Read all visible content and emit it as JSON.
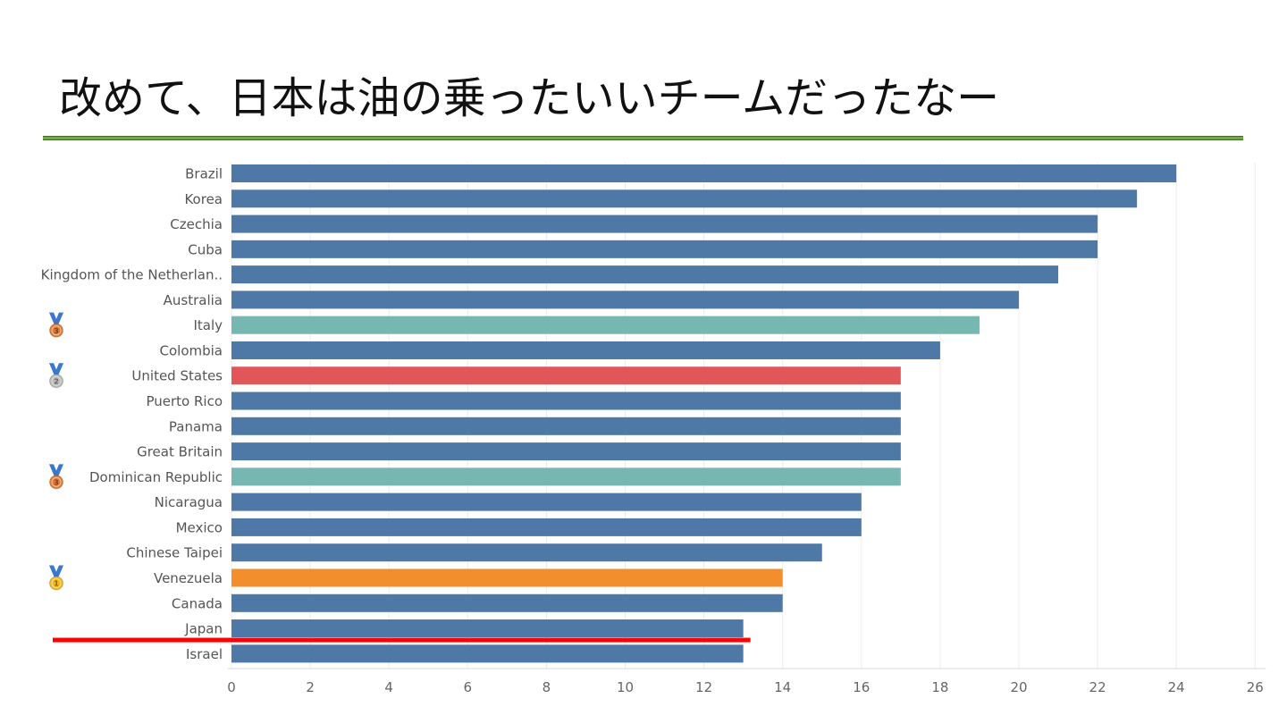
{
  "slide": {
    "title": "改めて、日本は油の乗ったいいチームだったなー"
  },
  "chart_data": {
    "type": "bar",
    "orientation": "horizontal",
    "title": "",
    "xlabel": "",
    "ylabel": "",
    "xlim": [
      0,
      26
    ],
    "x_ticks": [
      0,
      2,
      4,
      6,
      8,
      10,
      12,
      14,
      16,
      18,
      20,
      22,
      24,
      26
    ],
    "grid": true,
    "categories": [
      "Brazil",
      "Korea",
      "Czechia",
      "Cuba",
      "Kingdom of the Netherlan..",
      "Australia",
      "Italy",
      "Colombia",
      "United States",
      "Puerto Rico",
      "Panama",
      "Great Britain",
      "Dominican Republic",
      "Nicaragua",
      "Mexico",
      "Chinese Taipei",
      "Venezuela",
      "Canada",
      "Japan",
      "Israel"
    ],
    "values": [
      24,
      23,
      22,
      22,
      21,
      20,
      19,
      18,
      17,
      17,
      17,
      17,
      17,
      16,
      16,
      15,
      14,
      14,
      13,
      13
    ],
    "bar_colors": [
      "#4e79a7",
      "#4e79a7",
      "#4e79a7",
      "#4e79a7",
      "#4e79a7",
      "#4e79a7",
      "#76b7b2",
      "#4e79a7",
      "#e15759",
      "#4e79a7",
      "#4e79a7",
      "#4e79a7",
      "#76b7b2",
      "#4e79a7",
      "#4e79a7",
      "#4e79a7",
      "#f28e2b",
      "#4e79a7",
      "#4e79a7",
      "#4e79a7"
    ],
    "medals": [
      {
        "category": "Italy",
        "medal": "bronze-medal-icon",
        "number": "3"
      },
      {
        "category": "United States",
        "medal": "silver-medal-icon",
        "number": "2"
      },
      {
        "category": "Dominican Republic",
        "medal": "bronze-medal-icon",
        "number": "3"
      },
      {
        "category": "Venezuela",
        "medal": "gold-medal-icon",
        "number": "1"
      }
    ],
    "highlight": {
      "category": "Japan",
      "style": "red-underline",
      "color": "#ff0000"
    }
  },
  "colors": {
    "rule_green": "#71ab48",
    "gold": "#f5b71f",
    "silver": "#b8b8b8",
    "bronze": "#e07b35",
    "ribbon": "#3a78c9"
  }
}
